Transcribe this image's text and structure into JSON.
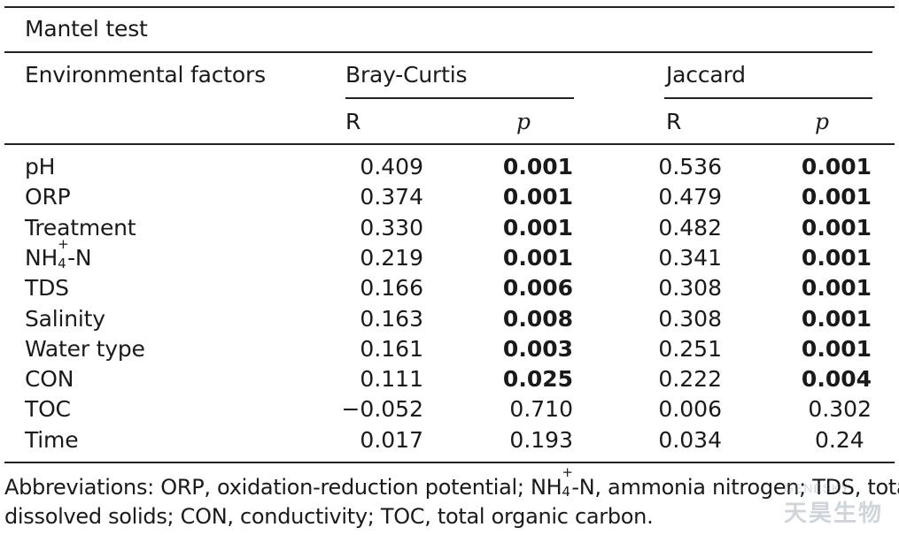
{
  "table": {
    "title": "Mantel test",
    "col_env": "Environmental factors",
    "group1": "Bray-Curtis",
    "group2": "Jaccard",
    "sub_r": "R",
    "sub_p": "p",
    "rows": [
      {
        "factor": "pH",
        "bc_r": "0.409",
        "bc_p": "0.001",
        "bc_p_bold": true,
        "j_r": "0.536",
        "j_p": "0.001",
        "j_p_bold": true
      },
      {
        "factor": "ORP",
        "bc_r": "0.374",
        "bc_p": "0.001",
        "bc_p_bold": true,
        "j_r": "0.479",
        "j_p": "0.001",
        "j_p_bold": true
      },
      {
        "factor": "Treatment",
        "bc_r": "0.330",
        "bc_p": "0.001",
        "bc_p_bold": true,
        "j_r": "0.482",
        "j_p": "0.001",
        "j_p_bold": true
      },
      {
        "factor": "NH",
        "factor_sup": "+",
        "factor_sub": "4",
        "factor_tail": "-N",
        "bc_r": "0.219",
        "bc_p": "0.001",
        "bc_p_bold": true,
        "j_r": "0.341",
        "j_p": "0.001",
        "j_p_bold": true
      },
      {
        "factor": "TDS",
        "bc_r": "0.166",
        "bc_p": "0.006",
        "bc_p_bold": true,
        "j_r": "0.308",
        "j_p": "0.001",
        "j_p_bold": true
      },
      {
        "factor": "Salinity",
        "bc_r": "0.163",
        "bc_p": "0.008",
        "bc_p_bold": true,
        "j_r": "0.308",
        "j_p": "0.001",
        "j_p_bold": true
      },
      {
        "factor": "Water type",
        "bc_r": "0.161",
        "bc_p": "0.003",
        "bc_p_bold": true,
        "j_r": "0.251",
        "j_p": "0.001",
        "j_p_bold": true
      },
      {
        "factor": "CON",
        "bc_r": "0.111",
        "bc_p": "0.025",
        "bc_p_bold": true,
        "j_r": "0.222",
        "j_p": "0.004",
        "j_p_bold": true
      },
      {
        "factor": "TOC",
        "bc_r": "−0.052",
        "bc_p": "0.710",
        "bc_p_bold": false,
        "j_r": "0.006",
        "j_p": "0.302",
        "j_p_bold": false
      },
      {
        "factor": "Time",
        "bc_r": "0.017",
        "bc_p": "0.193",
        "bc_p_bold": false,
        "j_r": "0.034",
        "j_p": "0.24",
        "j_p_bold": false
      }
    ]
  },
  "footnote": {
    "line1_a": "Abbreviations: ORP, oxidation-reduction potential; NH",
    "line1_sup": "+",
    "line1_sub": "4",
    "line1_b": "-N, ammonia nitrogen; TDS, total",
    "line2": "dissolved solids; CON, conductivity; TOC, total organic carbon."
  },
  "watermark": {
    "latin": "GENESKY",
    "chinese": "天昊生物"
  }
}
